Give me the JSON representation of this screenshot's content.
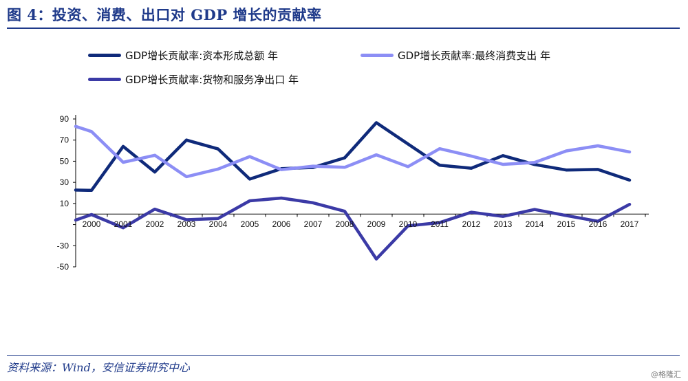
{
  "header": {
    "title": "图 4：投资、消费、出口对 GDP 增长的贡献率"
  },
  "source": {
    "text": "资料来源：Wind，安信证券研究中心"
  },
  "watermark": {
    "text": "@格隆汇"
  },
  "colors": {
    "title": "#1f3a8a",
    "investment": "#0f2a7a",
    "consumption": "#8c8ef5",
    "exports": "#3b3aa6",
    "axis": "#000000"
  },
  "chart_data": {
    "type": "line",
    "title": "",
    "xlabel": "",
    "ylabel": "",
    "x": [
      "2000",
      "2001",
      "2002",
      "2003",
      "2004",
      "2005",
      "2006",
      "2007",
      "2008",
      "2009",
      "2010",
      "2011",
      "2012",
      "2013",
      "2014",
      "2015",
      "2016",
      "2017"
    ],
    "x_extended_start": "1999",
    "ylim": [
      -50,
      90
    ],
    "yticks": [
      90,
      70,
      50,
      30,
      10,
      -10,
      -30,
      -50
    ],
    "ytick_labels": [
      "90",
      "70",
      "50",
      "30",
      "10",
      "",
      "-30",
      "-50"
    ],
    "grid": false,
    "legend_position": "top",
    "series": [
      {
        "name": "GDP增长贡献率:资本形成总额 年",
        "color": "#0f2a7a",
        "values_from_1999": [
          22.7,
          22.4,
          64.0,
          39.8,
          70.0,
          61.6,
          33.1,
          42.9,
          44.1,
          53.2,
          86.5,
          66.3,
          46.2,
          43.4,
          55.3,
          46.9,
          41.7,
          42.2,
          32.1
        ]
      },
      {
        "name": "GDP增长贡献率:最终消费支出 年",
        "color": "#8c8ef5",
        "values_from_1999": [
          83.0,
          78.1,
          49.0,
          55.6,
          35.4,
          42.6,
          54.4,
          42.0,
          45.3,
          44.2,
          56.1,
          44.9,
          61.9,
          54.9,
          47.0,
          48.8,
          59.7,
          64.6,
          58.8
        ]
      },
      {
        "name": "GDP增长贡献率:货物和服务净出口 年",
        "color": "#3b3aa6",
        "values_from_1999": [
          -5.7,
          -0.5,
          -13.0,
          4.6,
          -5.4,
          -4.2,
          12.5,
          15.1,
          10.6,
          2.6,
          -42.6,
          -11.2,
          -8.1,
          1.7,
          -2.3,
          4.3,
          -1.4,
          -6.8,
          9.1
        ]
      }
    ]
  }
}
